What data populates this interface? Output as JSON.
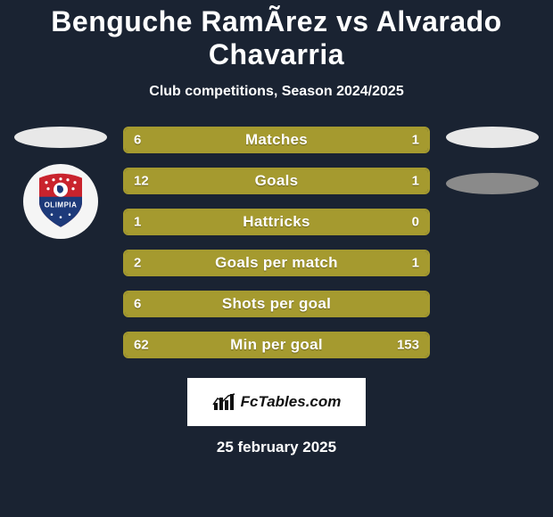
{
  "title": "Benguche RamÃ­rez vs Alvarado Chavarria",
  "subtitle": "Club competitions, Season 2024/2025",
  "colors": {
    "background": "#1a2332",
    "bar_fill": "#a59a2f",
    "bar_border": "#a59a2f",
    "text": "#ffffff",
    "ellipse_light": "#e8e8e8",
    "ellipse_dark": "#8a8a8a",
    "crest_bg": "#f5f5f5"
  },
  "bars": [
    {
      "label": "Matches",
      "left": "6",
      "right": "1",
      "left_w": 85.7,
      "right_w": 14.3
    },
    {
      "label": "Goals",
      "left": "12",
      "right": "1",
      "left_w": 92.3,
      "right_w": 7.7
    },
    {
      "label": "Hattricks",
      "left": "1",
      "right": "0",
      "left_w": 100,
      "right_w": 0
    },
    {
      "label": "Goals per match",
      "left": "2",
      "right": "1",
      "left_w": 66.7,
      "right_w": 33.3
    },
    {
      "label": "Shots per goal",
      "left": "6",
      "right": "",
      "left_w": 100,
      "right_w": 0
    },
    {
      "label": "Min per goal",
      "left": "62",
      "right": "153",
      "left_w": 28.8,
      "right_w": 71.2
    }
  ],
  "bar_style": {
    "height": 30,
    "gap": 16,
    "border_radius": 6,
    "label_fontsize": 17,
    "value_fontsize": 15
  },
  "crest": {
    "top_color": "#c9232d",
    "bottom_color": "#1d3a7a",
    "star_color": "#ffffff",
    "text": "OLIMPIA",
    "text_color": "#ffffff",
    "lion_color": "#1d3a7a"
  },
  "footer": {
    "brand": "FcTables.com",
    "chart_color": "#111111"
  },
  "date": "25 february 2025"
}
